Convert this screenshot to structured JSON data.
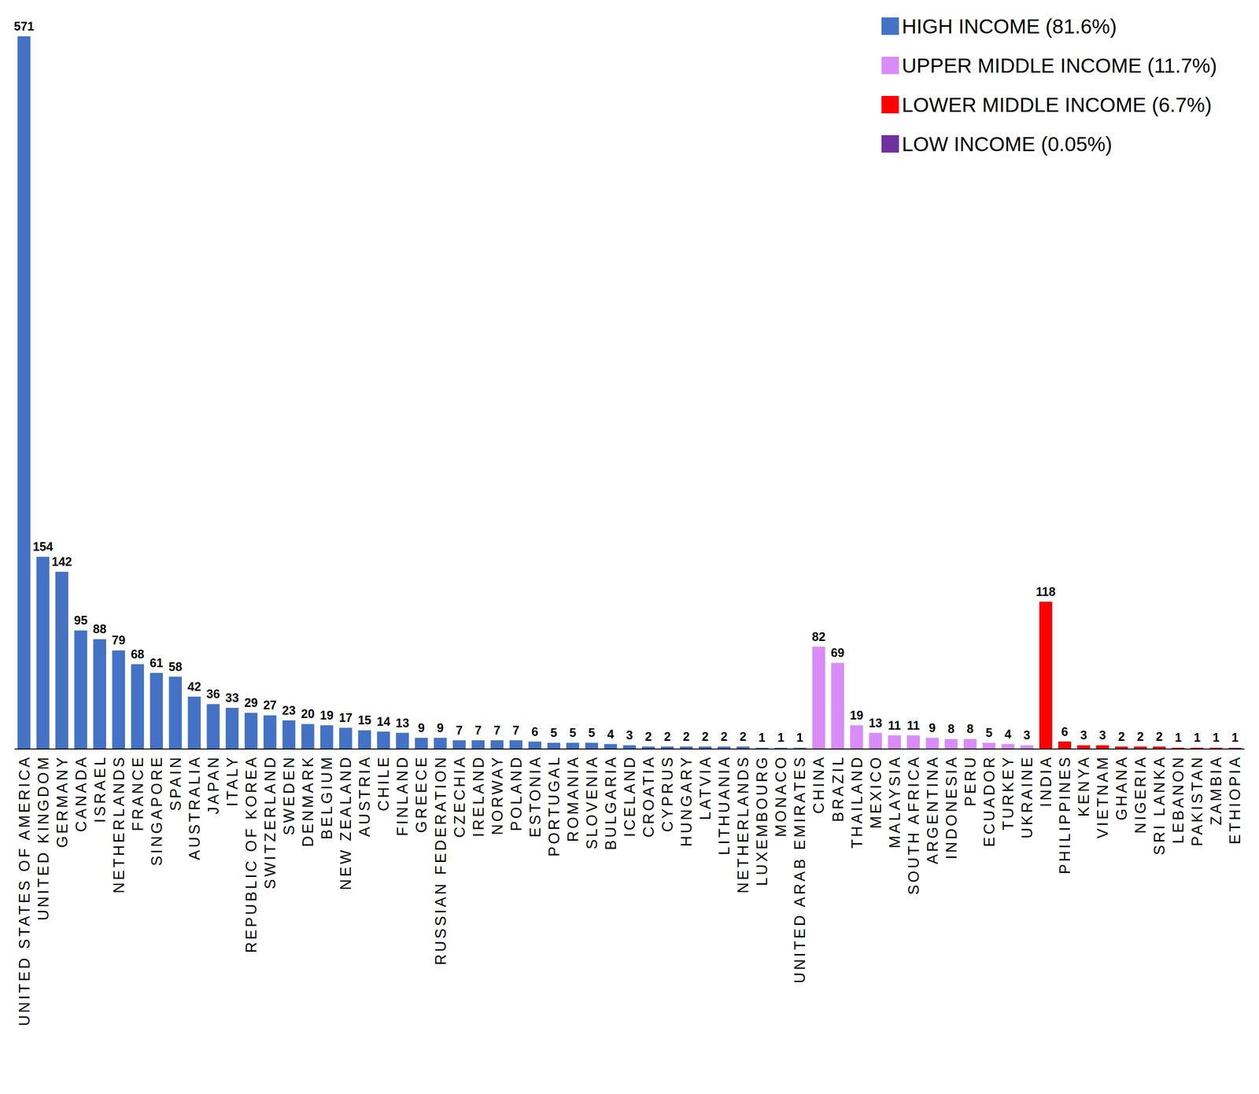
{
  "chart_data": {
    "type": "bar",
    "categories": [
      "UNITED STATES OF AMERICA",
      "UNITED KINGDOM",
      "GERMANY",
      "CANADA",
      "ISRAEL",
      "NETHERLANDS",
      "FRANCE",
      "SINGAPORE",
      "SPAIN",
      "AUSTRALIA",
      "JAPAN",
      "ITALY",
      "REPUBLIC OF KOREA",
      "SWITZERLAND",
      "SWEDEN",
      "DENMARK",
      "BELGIUM",
      "NEW ZEALAND",
      "AUSTRIA",
      "CHILE",
      "FINLAND",
      "GREECE",
      "RUSSIAN FEDERATION",
      "CZECHIA",
      "IRELAND",
      "NORWAY",
      "POLAND",
      "ESTONIA",
      "PORTUGAL",
      "ROMANIA",
      "SLOVENIA",
      "BULGARIA",
      "ICELAND",
      "CROATIA",
      "CYPRUS",
      "HUNGARY",
      "LATVIA",
      "LITHUANIA",
      "NETHERLANDS",
      "LUXEMBOURG",
      "MONACO",
      "UNITED ARAB EMIRATES",
      "CHINA",
      "BRAZIL",
      "THAILAND",
      "MEXICO",
      "MALAYSIA",
      "SOUTH AFRICA",
      "ARGENTINA",
      "INDONESIA",
      "PERU",
      "ECUADOR",
      "TURKEY",
      "UKRAINE",
      "INDIA",
      "PHILIPPINES",
      "KENYA",
      "VIETNAM",
      "GHANA",
      "NIGERIA",
      "SRI LANKA",
      "LEBANON",
      "PAKISTAN",
      "ZAMBIA",
      "ETHIOPIA"
    ],
    "series": [
      {
        "name": "HIGH INCOME (81.6%)",
        "color": "#4472c4",
        "values": [
          571,
          154,
          142,
          95,
          88,
          79,
          68,
          61,
          58,
          42,
          36,
          33,
          29,
          27,
          23,
          20,
          19,
          17,
          15,
          14,
          13,
          9,
          9,
          7,
          7,
          7,
          7,
          6,
          5,
          5,
          5,
          4,
          3,
          2,
          2,
          2,
          2,
          2,
          2,
          1,
          1,
          1,
          null,
          null,
          null,
          null,
          null,
          null,
          null,
          null,
          null,
          null,
          null,
          null,
          null,
          null,
          null,
          null,
          null,
          null,
          null,
          null,
          null,
          null,
          null
        ]
      },
      {
        "name": "UPPER MIDDLE INCOME (11.7%)",
        "color": "#d98cf7",
        "values": [
          null,
          null,
          null,
          null,
          null,
          null,
          null,
          null,
          null,
          null,
          null,
          null,
          null,
          null,
          null,
          null,
          null,
          null,
          null,
          null,
          null,
          null,
          null,
          null,
          null,
          null,
          null,
          null,
          null,
          null,
          null,
          null,
          null,
          null,
          null,
          null,
          null,
          null,
          null,
          null,
          null,
          null,
          82,
          69,
          19,
          13,
          11,
          11,
          9,
          8,
          8,
          5,
          4,
          3,
          null,
          null,
          null,
          null,
          null,
          null,
          null,
          null,
          null,
          null,
          null
        ]
      },
      {
        "name": "LOWER MIDDLE INCOME (6.7%)",
        "color": "#ff0000",
        "values": [
          null,
          null,
          null,
          null,
          null,
          null,
          null,
          null,
          null,
          null,
          null,
          null,
          null,
          null,
          null,
          null,
          null,
          null,
          null,
          null,
          null,
          null,
          null,
          null,
          null,
          null,
          null,
          null,
          null,
          null,
          null,
          null,
          null,
          null,
          null,
          null,
          null,
          null,
          null,
          null,
          null,
          null,
          null,
          null,
          null,
          null,
          null,
          null,
          null,
          null,
          null,
          null,
          null,
          null,
          118,
          6,
          3,
          3,
          2,
          2,
          2,
          1,
          1,
          1,
          null
        ]
      },
      {
        "name": "LOW INCOME (0.05%)",
        "color": "#7030a0",
        "values": [
          null,
          null,
          null,
          null,
          null,
          null,
          null,
          null,
          null,
          null,
          null,
          null,
          null,
          null,
          null,
          null,
          null,
          null,
          null,
          null,
          null,
          null,
          null,
          null,
          null,
          null,
          null,
          null,
          null,
          null,
          null,
          null,
          null,
          null,
          null,
          null,
          null,
          null,
          null,
          null,
          null,
          null,
          null,
          null,
          null,
          null,
          null,
          null,
          null,
          null,
          null,
          null,
          null,
          null,
          null,
          null,
          null,
          null,
          null,
          null,
          null,
          null,
          null,
          null,
          1
        ]
      }
    ],
    "ylim": [
      0,
      571
    ],
    "stacked": true,
    "data_labels": true,
    "tick_labels": "x",
    "legend": "top-right",
    "grid": false
  }
}
